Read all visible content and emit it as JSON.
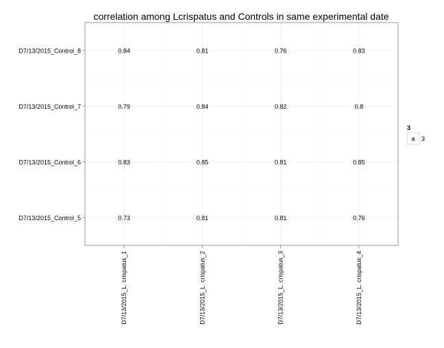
{
  "chart_data": {
    "type": "heatmap",
    "title": "correlation among Lcrispatus and Controls in same experimental date",
    "xlabel": "",
    "ylabel": "",
    "x_categories": [
      "D7/13/2015_L. crispatus_1",
      "D7/13/2015_L. crispatus_2",
      "D7/13/2015_L. crispatus_3",
      "D7/13/2015_L. crispatus_4"
    ],
    "y_categories": [
      "D7/13/2015_Control_5",
      "D7/13/2015_Control_6",
      "D7/13/2015_Control_7",
      "D7/13/2015_Control_8"
    ],
    "values": [
      [
        "0.73",
        "0.81",
        "0.81",
        "0.76"
      ],
      [
        "0.83",
        "0.85",
        "0.81",
        "0.85"
      ],
      [
        "0.79",
        "0.84",
        "0.82",
        "0.8"
      ],
      [
        "0.84",
        "0.81",
        "0.76",
        "0.83"
      ]
    ],
    "grid": true,
    "legend": {
      "title": "3",
      "key_glyph": "a",
      "label": "3",
      "position": "right"
    }
  }
}
